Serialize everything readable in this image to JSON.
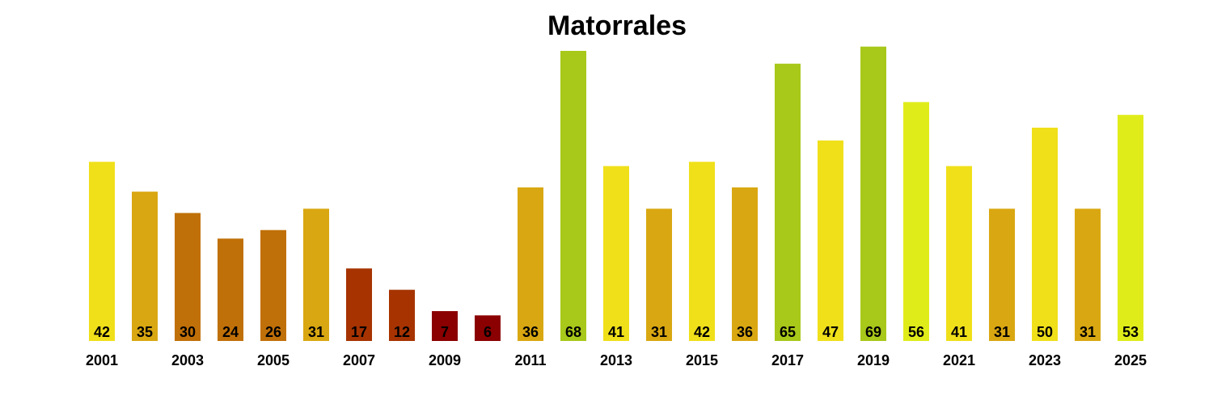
{
  "chart_data": {
    "type": "bar",
    "title": "Matorrales",
    "xlabel": "",
    "ylabel": "",
    "ylim": [
      0,
      70
    ],
    "grid": false,
    "categories": [
      "2001",
      "2002",
      "2003",
      "2004",
      "2005",
      "2006",
      "2007",
      "2008",
      "2009",
      "2010",
      "2011",
      "2012",
      "2013",
      "2014",
      "2015",
      "2016",
      "2017",
      "2018",
      "2019",
      "2020",
      "2021",
      "2022",
      "2023",
      "2024",
      "2025"
    ],
    "tick_labels": [
      "2001",
      "",
      "2003",
      "",
      "2005",
      "",
      "2007",
      "",
      "2009",
      "",
      "2011",
      "",
      "2013",
      "",
      "2015",
      "",
      "2017",
      "",
      "2019",
      "",
      "2021",
      "",
      "2023",
      "",
      "2025"
    ],
    "values": [
      42,
      35,
      30,
      24,
      26,
      31,
      17,
      12,
      7,
      6,
      36,
      68,
      41,
      31,
      42,
      36,
      65,
      47,
      69,
      56,
      41,
      31,
      50,
      31,
      53
    ],
    "bar_colors": [
      "#f0e01a",
      "#d9a711",
      "#c07008",
      "#c07008",
      "#c07008",
      "#d9a711",
      "#a63300",
      "#a63300",
      "#8b0000",
      "#8b0000",
      "#d9a711",
      "#a8c81a",
      "#f0e01a",
      "#d9a711",
      "#f0e01a",
      "#d9a711",
      "#a8c81a",
      "#f0e01a",
      "#a8c81a",
      "#e0ec1a",
      "#f0e01a",
      "#d9a711",
      "#f0e01a",
      "#d9a711",
      "#e0ec1a"
    ]
  }
}
